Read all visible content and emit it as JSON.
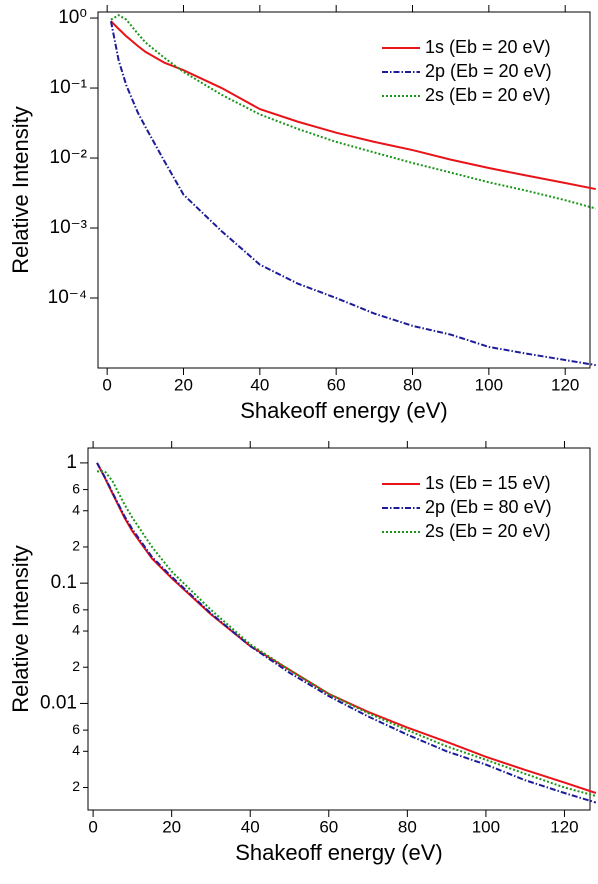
{
  "chart_data": [
    {
      "type": "line",
      "log_y": true,
      "legend": "upper right",
      "x_label": "Shakeoff energy (eV)",
      "y_label": "Relative Intensity",
      "x": [
        1,
        3,
        5,
        8,
        10,
        15,
        20,
        30,
        40,
        50,
        60,
        70,
        80,
        90,
        100,
        110,
        120,
        128
      ],
      "series": [
        {
          "name": "1s (Eb = 20 eV)",
          "color": "#e8141a",
          "dash": "solid",
          "values": [
            0.9,
            0.7,
            0.55,
            0.4,
            0.33,
            0.23,
            0.18,
            0.1,
            0.05,
            0.033,
            0.023,
            0.017,
            0.013,
            0.0095,
            0.0072,
            0.0056,
            0.0044,
            0.0036
          ]
        },
        {
          "name": "2p (Eb = 20 eV)",
          "color": "#1c1c9a",
          "dash": "dashdot",
          "values": [
            0.9,
            0.25,
            0.11,
            0.045,
            0.028,
            0.009,
            0.003,
            0.0009,
            0.0003,
            0.00016,
            0.0001,
            6e-05,
            4e-05,
            3e-05,
            2e-05,
            1.6e-05,
            1.3e-05,
            1.1e-05
          ]
        },
        {
          "name": "2s (Eb = 20 eV)",
          "color": "#1a961a",
          "dash": "dotted",
          "values": [
            0.95,
            1.1,
            0.95,
            0.6,
            0.45,
            0.27,
            0.17,
            0.08,
            0.042,
            0.026,
            0.017,
            0.012,
            0.0085,
            0.0062,
            0.0045,
            0.0034,
            0.0025,
            0.0019
          ]
        }
      ],
      "xlim": [
        -2.4,
        126.5
      ],
      "xticks": [
        0,
        20,
        40,
        60,
        80,
        100,
        120
      ],
      "ylim": [
        1e-05,
        1.22
      ],
      "yticks": [
        {
          "value": 1,
          "label": "10⁰"
        },
        {
          "value": 0.1,
          "label": "10⁻¹"
        },
        {
          "value": 0.01,
          "label": "10⁻²"
        },
        {
          "value": 0.001,
          "label": "10⁻³"
        },
        {
          "value": 0.0001,
          "label": "10⁻⁴"
        }
      ]
    },
    {
      "type": "line",
      "log_y": true,
      "legend": "upper right",
      "x_label": "Shakeoff energy (eV)",
      "y_label": "Relative Intensity",
      "x": [
        1,
        3,
        5,
        8,
        10,
        15,
        20,
        30,
        40,
        50,
        60,
        70,
        80,
        90,
        100,
        110,
        120,
        128
      ],
      "series": [
        {
          "name": "1s (Eb = 15 eV)",
          "color": "#e8141a",
          "dash": "solid",
          "values": [
            1.0,
            0.75,
            0.55,
            0.35,
            0.27,
            0.16,
            0.11,
            0.055,
            0.03,
            0.019,
            0.012,
            0.0085,
            0.0063,
            0.0048,
            0.0036,
            0.0028,
            0.0022,
            0.0018
          ]
        },
        {
          "name": "2p (Eb = 80 eV)",
          "color": "#1c1c9a",
          "dash": "dashdot",
          "values": [
            1.0,
            0.76,
            0.56,
            0.36,
            0.28,
            0.165,
            0.113,
            0.056,
            0.03,
            0.018,
            0.0115,
            0.0078,
            0.0055,
            0.004,
            0.0031,
            0.0023,
            0.0018,
            0.0015
          ]
        },
        {
          "name": "2s (Eb = 20 eV)",
          "color": "#1a961a",
          "dash": "dotted",
          "values": [
            0.85,
            0.85,
            0.7,
            0.45,
            0.35,
            0.2,
            0.125,
            0.06,
            0.031,
            0.019,
            0.012,
            0.0083,
            0.006,
            0.0044,
            0.0034,
            0.0026,
            0.002,
            0.0017
          ]
        }
      ],
      "xlim": [
        -1.3,
        126.5
      ],
      "xticks": [
        0,
        20,
        40,
        60,
        80,
        100,
        120
      ],
      "ylim": [
        0.0013,
        1.33
      ],
      "yticks": [
        1,
        {
          "value": 0.6,
          "label": "6"
        },
        {
          "value": 0.4,
          "label": "4"
        },
        {
          "value": 0.2,
          "label": "2"
        },
        0.1,
        {
          "value": 0.06,
          "label": "6"
        },
        {
          "value": 0.04,
          "label": "4"
        },
        {
          "value": 0.02,
          "label": "2"
        },
        0.01,
        {
          "value": 0.006,
          "label": "6"
        },
        {
          "value": 0.004,
          "label": "4"
        },
        {
          "value": 0.002,
          "label": "2"
        }
      ]
    }
  ]
}
